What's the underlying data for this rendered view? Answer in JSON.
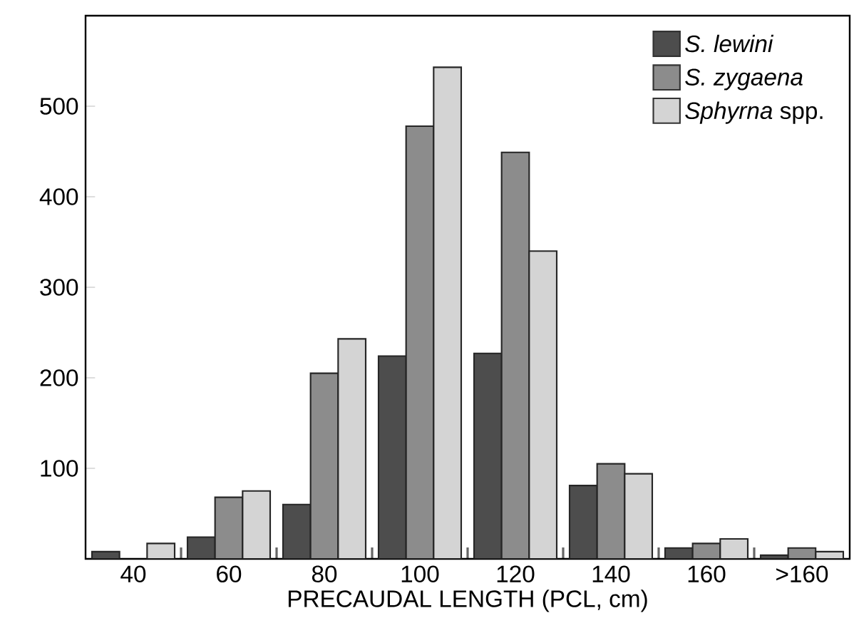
{
  "chart_data": {
    "type": "bar",
    "xlabel": "PRECAUDAL LENGTH (PCL, cm)",
    "categories": [
      "40",
      "60",
      "80",
      "100",
      "120",
      "140",
      "160",
      ">160"
    ],
    "series": [
      {
        "name": "*S. lewini*",
        "color": "#4d4d4d",
        "values": [
          8,
          24,
          60,
          224,
          227,
          81,
          12,
          4
        ]
      },
      {
        "name": "*S. zygaena*",
        "color": "#8c8c8c",
        "values": [
          null,
          68,
          205,
          478,
          449,
          105,
          17,
          12
        ]
      },
      {
        "name": "*Sphyrna* spp.",
        "color": "#d4d4d4",
        "values": [
          17,
          75,
          243,
          543,
          340,
          94,
          22,
          8
        ]
      }
    ],
    "ylim": [
      0,
      600
    ],
    "yticks": [
      {
        "value": 0,
        "label": null
      },
      100,
      200,
      300,
      400,
      500
    ],
    "grid": false,
    "legend": "top right"
  }
}
